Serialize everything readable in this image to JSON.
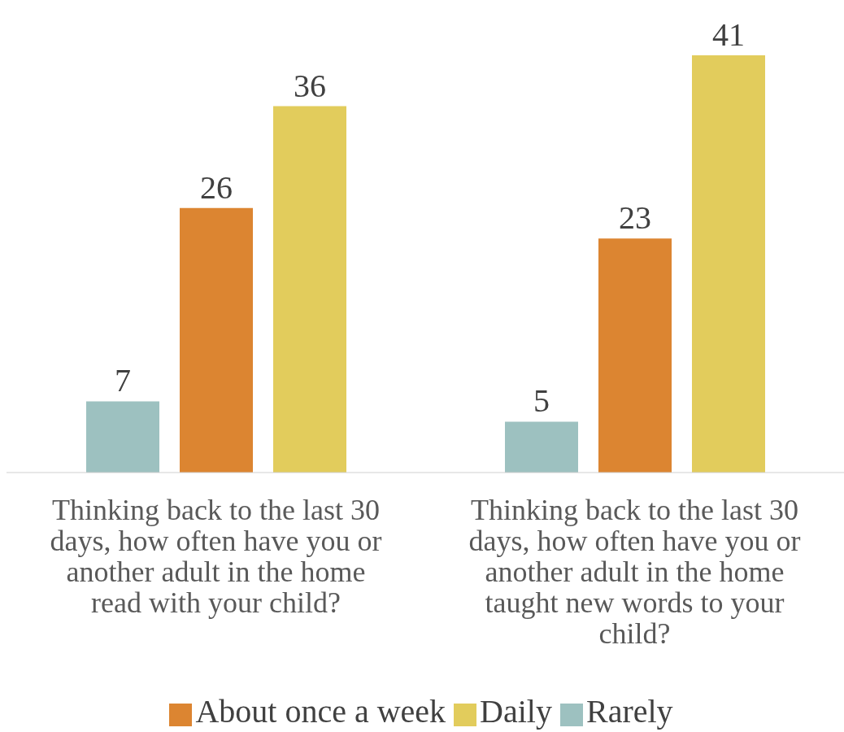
{
  "chart_data": {
    "type": "bar",
    "categories": [
      "Thinking back to the last 30 days, how often have you or another adult in the home read with your child?",
      "Thinking back to the last 30 days, how often have you or another adult in the home taught new words to your child?"
    ],
    "series": [
      {
        "name": "Rarely",
        "color": "#9dc1c0",
        "values": [
          7,
          5
        ]
      },
      {
        "name": "About once a week",
        "color": "#dc8531",
        "values": [
          26,
          23
        ]
      },
      {
        "name": "Daily",
        "color": "#e2cc5c",
        "values": [
          36,
          41
        ]
      }
    ],
    "data_labels": true,
    "legend": "bottom"
  }
}
